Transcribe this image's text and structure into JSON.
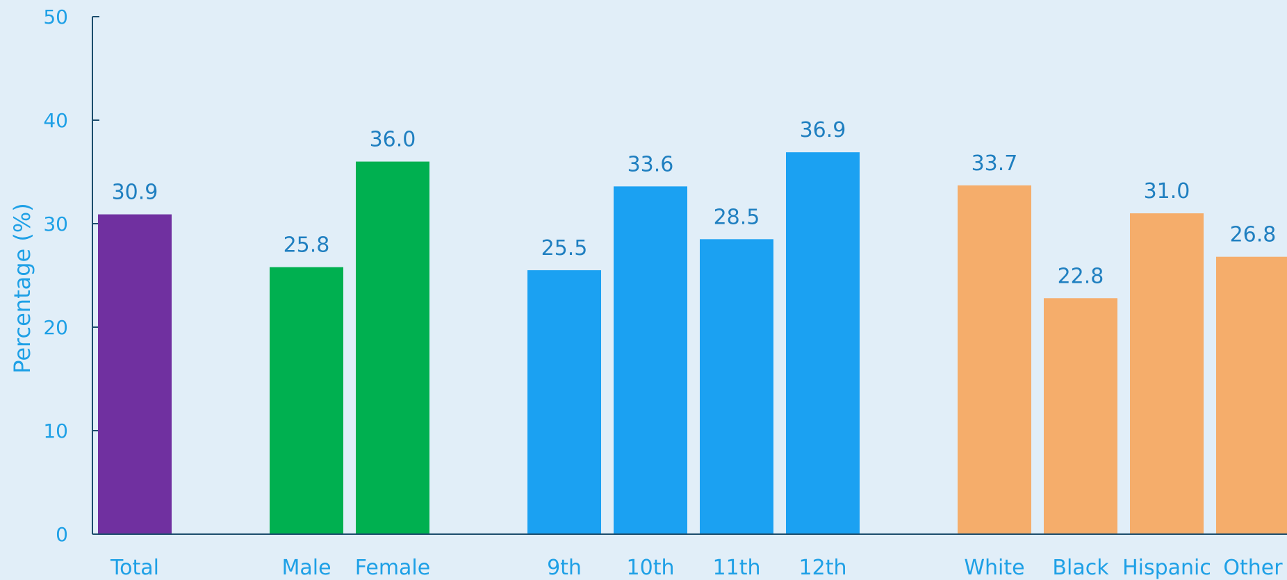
{
  "chart_data": {
    "type": "bar",
    "ylabel": "Percentage (%)",
    "xlabel": "",
    "ylim": [
      0,
      50
    ],
    "yticks": [
      0,
      10,
      20,
      30,
      40,
      50
    ],
    "grid": false,
    "groups": [
      {
        "categories": [
          "Total"
        ],
        "values": [
          30.9
        ],
        "color": "#7030a0"
      },
      {
        "categories": [
          "Male",
          "Female"
        ],
        "values": [
          25.8,
          36.0
        ],
        "color": "#00b050"
      },
      {
        "categories": [
          "9th",
          "10th",
          "11th",
          "12th"
        ],
        "values": [
          25.5,
          33.6,
          28.5,
          36.9
        ],
        "color": "#1ba1f2"
      },
      {
        "categories": [
          "White",
          "Black",
          "Hispanic",
          "Other"
        ],
        "values": [
          33.7,
          22.8,
          31.0,
          26.8
        ],
        "color": "#f5ad6b"
      }
    ]
  }
}
